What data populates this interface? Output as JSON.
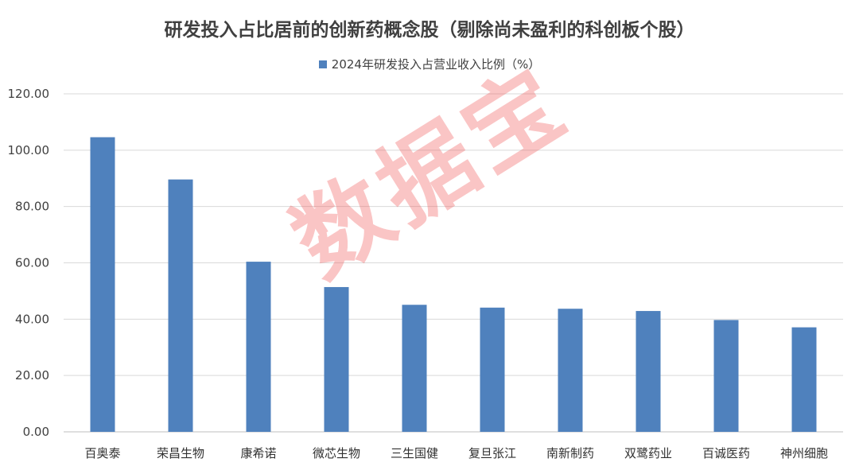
{
  "chart_data": {
    "type": "bar",
    "title": "研发投入占比居前的创新药概念股（剔除尚未盈利的科创板个股）",
    "categories": [
      "百奥泰",
      "荣昌生物",
      "康希诺",
      "微芯生物",
      "三生国健",
      "复旦张江",
      "南新制药",
      "双鹭药业",
      "百诚医药",
      "神州细胞"
    ],
    "series": [
      {
        "name": "2024年研发投入占营业收入比例（%）",
        "values": [
          104.6,
          89.6,
          60.4,
          51.4,
          45.1,
          44.1,
          43.7,
          42.9,
          39.7,
          37.1
        ]
      }
    ],
    "ylim": [
      0,
      120
    ],
    "yticks": [
      "0.00",
      "20.00",
      "40.00",
      "60.00",
      "80.00",
      "100.00",
      "120.00"
    ],
    "grid": true,
    "legend_position": "top",
    "bar_color": "#4F81BD"
  },
  "watermark": "数据宝"
}
